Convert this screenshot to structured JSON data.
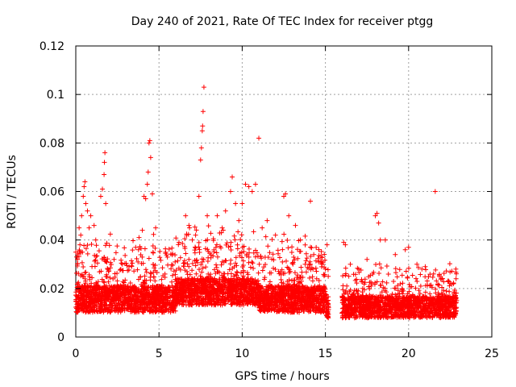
{
  "chart_data": {
    "type": "scatter",
    "title": "Day 240 of 2021, Rate Of TEC Index for receiver ptgg",
    "xlabel": "GPS time / hours",
    "ylabel": "ROTI / TECUs",
    "xlim": [
      0,
      25
    ],
    "ylim": [
      0,
      0.12
    ],
    "x_ticks": [
      "0",
      "5",
      "10",
      "15",
      "20",
      "25"
    ],
    "y_ticks": [
      "0",
      "0.02",
      "0.04",
      "0.06",
      "0.08",
      "0.1",
      "0.12"
    ],
    "grid": true,
    "marker": "+",
    "color": "#ff0000",
    "data_gap_hours": [
      15.2,
      16.0
    ],
    "series": [
      {
        "points": [
          [
            0.0,
            0.035
          ],
          [
            0.05,
            0.033
          ],
          [
            0.1,
            0.032
          ],
          [
            0.2,
            0.045
          ],
          [
            0.25,
            0.038
          ],
          [
            0.3,
            0.042
          ],
          [
            0.35,
            0.05
          ],
          [
            0.45,
            0.058
          ],
          [
            0.5,
            0.062
          ],
          [
            0.55,
            0.064
          ],
          [
            0.6,
            0.055
          ],
          [
            0.7,
            0.052
          ],
          [
            0.8,
            0.045
          ],
          [
            0.9,
            0.05
          ],
          [
            1.1,
            0.046
          ],
          [
            1.2,
            0.04
          ],
          [
            1.5,
            0.058
          ],
          [
            1.6,
            0.061
          ],
          [
            1.7,
            0.067
          ],
          [
            1.72,
            0.072
          ],
          [
            1.75,
            0.076
          ],
          [
            1.8,
            0.055
          ],
          [
            2.3,
            0.032
          ],
          [
            2.8,
            0.03
          ],
          [
            3.2,
            0.029
          ],
          [
            3.6,
            0.037
          ],
          [
            3.8,
            0.041
          ],
          [
            4.0,
            0.044
          ],
          [
            4.1,
            0.058
          ],
          [
            4.2,
            0.057
          ],
          [
            4.3,
            0.063
          ],
          [
            4.35,
            0.068
          ],
          [
            4.4,
            0.08
          ],
          [
            4.45,
            0.081
          ],
          [
            4.5,
            0.074
          ],
          [
            4.6,
            0.059
          ],
          [
            4.8,
            0.045
          ],
          [
            5.4,
            0.035
          ],
          [
            6.2,
            0.039
          ],
          [
            6.6,
            0.05
          ],
          [
            6.8,
            0.046
          ],
          [
            7.0,
            0.04
          ],
          [
            7.2,
            0.042
          ],
          [
            7.4,
            0.058
          ],
          [
            7.5,
            0.073
          ],
          [
            7.55,
            0.078
          ],
          [
            7.6,
            0.085
          ],
          [
            7.62,
            0.087
          ],
          [
            7.65,
            0.093
          ],
          [
            7.7,
            0.103
          ],
          [
            7.9,
            0.05
          ],
          [
            8.5,
            0.05
          ],
          [
            8.8,
            0.045
          ],
          [
            9.0,
            0.052
          ],
          [
            9.3,
            0.06
          ],
          [
            9.4,
            0.066
          ],
          [
            9.6,
            0.055
          ],
          [
            9.8,
            0.048
          ],
          [
            10.0,
            0.055
          ],
          [
            10.2,
            0.063
          ],
          [
            10.4,
            0.062
          ],
          [
            10.6,
            0.06
          ],
          [
            10.8,
            0.063
          ],
          [
            11.0,
            0.082
          ],
          [
            11.2,
            0.045
          ],
          [
            11.5,
            0.048
          ],
          [
            12.0,
            0.042
          ],
          [
            12.5,
            0.058
          ],
          [
            12.6,
            0.059
          ],
          [
            12.8,
            0.05
          ],
          [
            13.2,
            0.046
          ],
          [
            13.5,
            0.04
          ],
          [
            14.1,
            0.056
          ],
          [
            14.3,
            0.034
          ],
          [
            14.8,
            0.03
          ],
          [
            15.1,
            0.038
          ],
          [
            16.1,
            0.039
          ],
          [
            16.2,
            0.038
          ],
          [
            16.5,
            0.03
          ],
          [
            17.0,
            0.028
          ],
          [
            17.5,
            0.032
          ],
          [
            18.0,
            0.05
          ],
          [
            18.1,
            0.051
          ],
          [
            18.2,
            0.047
          ],
          [
            18.3,
            0.04
          ],
          [
            18.6,
            0.04
          ],
          [
            19.2,
            0.034
          ],
          [
            19.8,
            0.036
          ],
          [
            20.0,
            0.037
          ],
          [
            20.5,
            0.03
          ],
          [
            20.8,
            0.028
          ],
          [
            21.0,
            0.029
          ],
          [
            21.5,
            0.026
          ],
          [
            21.6,
            0.06
          ],
          [
            22.0,
            0.024
          ],
          [
            22.5,
            0.022
          ],
          [
            22.7,
            0.022
          ]
        ]
      }
    ]
  }
}
